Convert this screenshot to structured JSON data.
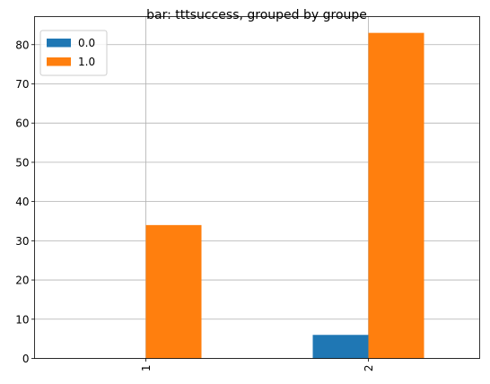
{
  "chart_data": {
    "type": "bar",
    "title": "bar: tttsuccess, grouped by groupe",
    "categories": [
      "1",
      "2"
    ],
    "series": [
      {
        "name": "0.0",
        "values": [
          0,
          6
        ],
        "color": "#1f77b4"
      },
      {
        "name": "1.0",
        "values": [
          34,
          83
        ],
        "color": "#ff7f0e"
      }
    ],
    "ylim": [
      0,
      87.15
    ],
    "yticks": [
      "0",
      "10",
      "20",
      "30",
      "40",
      "50",
      "60",
      "70",
      "80"
    ],
    "grid": true,
    "legend": "top-left",
    "xtick_rotation": "vertical"
  }
}
